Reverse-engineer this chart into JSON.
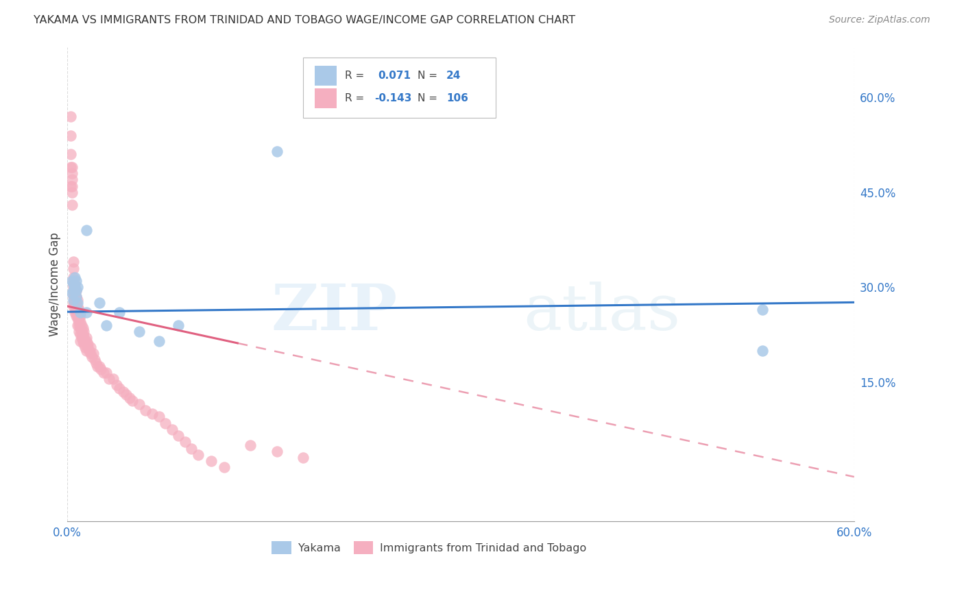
{
  "title": "YAKAMA VS IMMIGRANTS FROM TRINIDAD AND TOBAGO WAGE/INCOME GAP CORRELATION CHART",
  "source": "Source: ZipAtlas.com",
  "ylabel": "Wage/Income Gap",
  "y_ticks": [
    0.15,
    0.3,
    0.45,
    0.6
  ],
  "y_tick_labels": [
    "15.0%",
    "30.0%",
    "45.0%",
    "60.0%"
  ],
  "xlim": [
    0.0,
    0.6
  ],
  "ylim": [
    -0.07,
    0.68
  ],
  "legend_labels": [
    "Yakama",
    "Immigrants from Trinidad and Tobago"
  ],
  "r_blue": 0.071,
  "n_blue": 24,
  "r_pink": -0.143,
  "n_pink": 106,
  "blue_color": "#aac9e8",
  "pink_color": "#f5afc0",
  "blue_line_color": "#3478c8",
  "pink_line_color": "#e06080",
  "watermark_zip": "ZIP",
  "watermark_atlas": "atlas",
  "blue_scatter_x": [
    0.004,
    0.004,
    0.005,
    0.005,
    0.005,
    0.006,
    0.006,
    0.007,
    0.007,
    0.007,
    0.008,
    0.008,
    0.01,
    0.015,
    0.015,
    0.025,
    0.03,
    0.04,
    0.055,
    0.07,
    0.085,
    0.16,
    0.53,
    0.53
  ],
  "blue_scatter_y": [
    0.29,
    0.31,
    0.295,
    0.305,
    0.28,
    0.315,
    0.3,
    0.295,
    0.31,
    0.285,
    0.275,
    0.3,
    0.26,
    0.39,
    0.26,
    0.275,
    0.24,
    0.26,
    0.23,
    0.215,
    0.24,
    0.515,
    0.265,
    0.2
  ],
  "pink_scatter_x": [
    0.003,
    0.003,
    0.003,
    0.003,
    0.003,
    0.004,
    0.004,
    0.004,
    0.004,
    0.004,
    0.004,
    0.005,
    0.005,
    0.005,
    0.005,
    0.005,
    0.005,
    0.005,
    0.005,
    0.005,
    0.005,
    0.005,
    0.006,
    0.006,
    0.006,
    0.006,
    0.006,
    0.006,
    0.006,
    0.007,
    0.007,
    0.007,
    0.007,
    0.007,
    0.007,
    0.007,
    0.008,
    0.008,
    0.008,
    0.008,
    0.008,
    0.008,
    0.008,
    0.009,
    0.009,
    0.009,
    0.009,
    0.009,
    0.009,
    0.01,
    0.01,
    0.01,
    0.01,
    0.01,
    0.01,
    0.011,
    0.011,
    0.011,
    0.012,
    0.012,
    0.012,
    0.013,
    0.013,
    0.013,
    0.014,
    0.015,
    0.015,
    0.015,
    0.015,
    0.016,
    0.016,
    0.017,
    0.018,
    0.018,
    0.019,
    0.02,
    0.021,
    0.022,
    0.023,
    0.025,
    0.026,
    0.028,
    0.03,
    0.032,
    0.035,
    0.038,
    0.04,
    0.043,
    0.045,
    0.048,
    0.05,
    0.055,
    0.06,
    0.065,
    0.07,
    0.075,
    0.08,
    0.085,
    0.09,
    0.095,
    0.1,
    0.11,
    0.12,
    0.14,
    0.16,
    0.18
  ],
  "pink_scatter_y": [
    0.54,
    0.57,
    0.49,
    0.51,
    0.46,
    0.47,
    0.48,
    0.45,
    0.43,
    0.46,
    0.49,
    0.29,
    0.305,
    0.31,
    0.295,
    0.275,
    0.285,
    0.3,
    0.315,
    0.27,
    0.33,
    0.34,
    0.28,
    0.295,
    0.305,
    0.285,
    0.27,
    0.26,
    0.275,
    0.27,
    0.285,
    0.295,
    0.265,
    0.255,
    0.275,
    0.26,
    0.26,
    0.27,
    0.28,
    0.25,
    0.24,
    0.265,
    0.255,
    0.245,
    0.255,
    0.265,
    0.24,
    0.23,
    0.25,
    0.235,
    0.245,
    0.255,
    0.225,
    0.215,
    0.235,
    0.22,
    0.23,
    0.24,
    0.215,
    0.225,
    0.235,
    0.21,
    0.22,
    0.23,
    0.205,
    0.21,
    0.215,
    0.22,
    0.2,
    0.205,
    0.21,
    0.2,
    0.195,
    0.205,
    0.19,
    0.195,
    0.185,
    0.18,
    0.175,
    0.175,
    0.17,
    0.165,
    0.165,
    0.155,
    0.155,
    0.145,
    0.14,
    0.135,
    0.13,
    0.125,
    0.12,
    0.115,
    0.105,
    0.1,
    0.095,
    0.085,
    0.075,
    0.065,
    0.055,
    0.045,
    0.035,
    0.025,
    0.015,
    0.05,
    0.04,
    0.03
  ]
}
